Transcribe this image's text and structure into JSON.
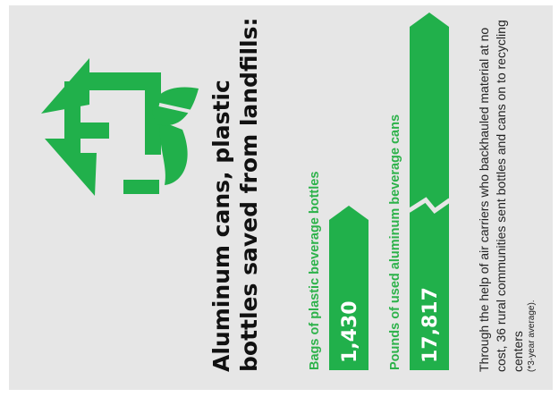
{
  "title": "Aluminum cans, plastic bottles saved from landfills:",
  "footnote": "Through the help of air carriers who backhauled material at no cost, 36 rural communities sent bottles and cans on to recycling centers",
  "footnote_note": "(*3-year average).",
  "icon": "recycle-leaf-icon",
  "colors": {
    "accent": "#21b04b",
    "background": "#e6e6e6",
    "text": "#111111"
  },
  "chart_data": {
    "type": "bar",
    "orientation": "horizontal",
    "categories": [
      "Bags of plastic beverage bottles",
      "Pounds of used aluminum beverage cans"
    ],
    "values": [
      1430,
      17817
    ],
    "value_labels": [
      "1,430",
      "17,817"
    ],
    "axis_break": "second bar has a break symbol (not drawn to scale)",
    "title": "Aluminum cans, plastic bottles saved from landfills:"
  }
}
